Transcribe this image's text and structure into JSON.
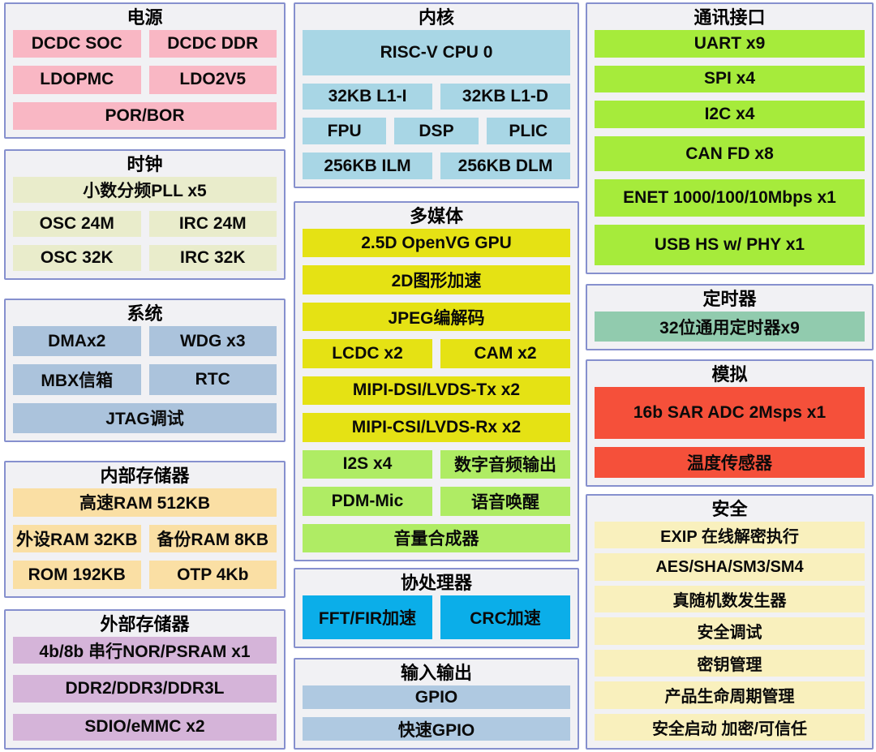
{
  "diagram": {
    "type": "soc-block-diagram",
    "colors": {
      "panel_bg": "#F1F1F4",
      "panel_border": "#8690CE",
      "power": "#F9B7C4",
      "clock": "#E9ECCB",
      "system": "#ABC3DC",
      "intmem": "#FADFA4",
      "extmem": "#D5B4D9",
      "core": "#A8D6E5",
      "multimedia_yellow": "#E5E214",
      "multimedia_green": "#AFEC64",
      "coprocessor": "#0BAEE9",
      "io": "#AFC9E1",
      "comm": "#A6EB3B",
      "timer": "#91CBAE",
      "analog": "#F5503A",
      "security": "#F9F0BD"
    }
  },
  "panels": {
    "power": {
      "title": "电源",
      "box_bg": "#F9B7C4",
      "rows": [
        {
          "cells": [
            {
              "t": "DCDC SOC",
              "n": "dcdc-soc"
            },
            {
              "t": "DCDC DDR",
              "n": "dcdc-ddr"
            }
          ]
        },
        {
          "cells": [
            {
              "t": "LDOPMC",
              "n": "ldopmc"
            },
            {
              "t": "LDO2V5",
              "n": "ldo2v5"
            }
          ]
        },
        {
          "cells": [
            {
              "t": "POR/BOR",
              "n": "por-bor"
            }
          ]
        }
      ]
    },
    "clock": {
      "title": "时钟",
      "box_bg": "#E9ECCB",
      "rows": [
        {
          "cells": [
            {
              "t": "小数分频PLL x5",
              "n": "fractional-pll-x5"
            }
          ]
        },
        {
          "cells": [
            {
              "t": "OSC 24M",
              "n": "osc-24m"
            },
            {
              "t": "IRC 24M",
              "n": "irc-24m"
            }
          ]
        },
        {
          "cells": [
            {
              "t": "OSC 32K",
              "n": "osc-32k"
            },
            {
              "t": "IRC 32K",
              "n": "irc-32k"
            }
          ]
        }
      ]
    },
    "system": {
      "title": "系统",
      "box_bg": "#ABC3DC",
      "rows": [
        {
          "cells": [
            {
              "t": "DMAx2",
              "n": "dma-x2"
            },
            {
              "t": "WDG x3",
              "n": "wdg-x3"
            }
          ]
        },
        {
          "cells": [
            {
              "t": "MBX信箱",
              "n": "mbx-mailbox"
            },
            {
              "t": "RTC",
              "n": "rtc"
            }
          ]
        },
        {
          "cells": [
            {
              "t": "JTAG调试",
              "n": "jtag-debug"
            }
          ]
        }
      ]
    },
    "intmem": {
      "title": "内部存储器",
      "box_bg": "#FADFA4",
      "rows": [
        {
          "cells": [
            {
              "t": "高速RAM 512KB",
              "n": "hs-ram-512kb"
            }
          ]
        },
        {
          "cells": [
            {
              "t": "外设RAM 32KB",
              "n": "periph-ram-32kb"
            },
            {
              "t": "备份RAM 8KB",
              "n": "backup-ram-8kb"
            }
          ]
        },
        {
          "cells": [
            {
              "t": "ROM 192KB",
              "n": "rom-192kb"
            },
            {
              "t": "OTP 4Kb",
              "n": "otp-4kb"
            }
          ]
        }
      ]
    },
    "extmem": {
      "title": "外部存储器",
      "box_bg": "#D5B4D9",
      "rows": [
        {
          "cells": [
            {
              "t": "4b/8b 串行NOR/PSRAM x1",
              "n": "serial-nor-psram-x1"
            }
          ]
        },
        {
          "cells": [
            {
              "t": "DDR2/DDR3/DDR3L",
              "n": "ddr2-ddr3-ddr3l"
            }
          ]
        },
        {
          "cells": [
            {
              "t": "SDIO/eMMC x2",
              "n": "sdio-emmc-x2"
            }
          ]
        }
      ]
    },
    "core": {
      "title": "内核",
      "box_bg": "#A8D6E5",
      "rows": [
        {
          "cells": [
            {
              "t": "RISC-V CPU 0",
              "n": "risc-v-cpu-0"
            }
          ]
        },
        {
          "cells": [
            {
              "t": "32KB L1-I",
              "n": "l1-i-32kb"
            },
            {
              "t": "32KB L1-D",
              "n": "l1-d-32kb"
            }
          ]
        },
        {
          "cells": [
            {
              "t": "FPU",
              "n": "fpu"
            },
            {
              "t": "DSP",
              "n": "dsp"
            },
            {
              "t": "PLIC",
              "n": "plic"
            }
          ]
        },
        {
          "cells": [
            {
              "t": "256KB ILM",
              "n": "ilm-256kb"
            },
            {
              "t": "256KB DLM",
              "n": "dlm-256kb"
            }
          ]
        }
      ]
    },
    "multimedia": {
      "title": "多媒体",
      "box_bg": "#E5E214",
      "rows": [
        {
          "cells": [
            {
              "t": "2.5D OpenVG GPU",
              "n": "openvg-gpu"
            }
          ]
        },
        {
          "cells": [
            {
              "t": "2D图形加速",
              "n": "graphics-2d-accel"
            }
          ]
        },
        {
          "cells": [
            {
              "t": "JPEG编解码",
              "n": "jpeg-codec"
            }
          ]
        },
        {
          "cells": [
            {
              "t": "LCDC x2",
              "n": "lcdc-x2"
            },
            {
              "t": "CAM x2",
              "n": "cam-x2"
            }
          ]
        },
        {
          "cells": [
            {
              "t": "MIPI-DSI/LVDS-Tx x2",
              "n": "mipi-dsi-lvds-tx-x2"
            }
          ]
        },
        {
          "cells": [
            {
              "t": "MIPI-CSI/LVDS-Rx x2",
              "n": "mipi-csi-lvds-rx-x2"
            }
          ]
        },
        {
          "cells": [
            {
              "t": "I2S x4",
              "n": "i2s-x4",
              "bg": "#AFEC64"
            },
            {
              "t": "数字音频输出",
              "n": "digital-audio-out",
              "bg": "#AFEC64"
            }
          ]
        },
        {
          "cells": [
            {
              "t": "PDM-Mic",
              "n": "pdm-mic",
              "bg": "#AFEC64"
            },
            {
              "t": "语音唤醒",
              "n": "voice-wakeup",
              "bg": "#AFEC64"
            }
          ]
        },
        {
          "cells": [
            {
              "t": "音量合成器",
              "n": "volume-synthesizer",
              "bg": "#AFEC64"
            }
          ]
        }
      ]
    },
    "coprocessor": {
      "title": "协处理器",
      "box_bg": "#0BAEE9",
      "rows": [
        {
          "cells": [
            {
              "t": "FFT/FIR加速",
              "n": "fft-fir-accel"
            },
            {
              "t": "CRC加速",
              "n": "crc-accel"
            }
          ]
        }
      ]
    },
    "io": {
      "title": "输入输出",
      "box_bg": "#AFC9E1",
      "rows": [
        {
          "cells": [
            {
              "t": "GPIO",
              "n": "gpio"
            }
          ]
        },
        {
          "cells": [
            {
              "t": "快速GPIO",
              "n": "fast-gpio"
            }
          ]
        }
      ]
    },
    "comm": {
      "title": "通讯接口",
      "box_bg": "#A6EB3B",
      "rows": [
        {
          "cells": [
            {
              "t": "UART x9",
              "n": "uart-x9"
            }
          ]
        },
        {
          "cells": [
            {
              "t": "SPI x4",
              "n": "spi-x4"
            }
          ]
        },
        {
          "cells": [
            {
              "t": "I2C x4",
              "n": "i2c-x4"
            }
          ]
        },
        {
          "cells": [
            {
              "t": "CAN FD x8",
              "n": "can-fd-x8"
            }
          ]
        },
        {
          "cells": [
            {
              "t": "ENET 1000/100/10Mbps x1",
              "n": "enet-x1"
            }
          ]
        },
        {
          "cells": [
            {
              "t": "USB HS w/ PHY x1",
              "n": "usb-hs-phy-x1"
            }
          ]
        }
      ]
    },
    "timer": {
      "title": "定时器",
      "box_bg": "#91CBAE",
      "rows": [
        {
          "cells": [
            {
              "t": "32位通用定时器x9",
              "n": "gp-timer-32bit-x9"
            }
          ]
        }
      ]
    },
    "analog": {
      "title": "模拟",
      "box_bg": "#F5503A",
      "rows": [
        {
          "cells": [
            {
              "t": "16b SAR ADC 2Msps x1",
              "n": "sar-adc-16b"
            }
          ]
        },
        {
          "cells": [
            {
              "t": "温度传感器",
              "n": "temp-sensor"
            }
          ]
        }
      ]
    },
    "security": {
      "title": "安全",
      "box_bg": "#F9F0BD",
      "rows": [
        {
          "cells": [
            {
              "t": "EXIP 在线解密执行",
              "n": "exip-inline-decrypt"
            }
          ]
        },
        {
          "cells": [
            {
              "t": "AES/SHA/SM3/SM4",
              "n": "aes-sha-sm3-sm4"
            }
          ]
        },
        {
          "cells": [
            {
              "t": "真随机数发生器",
              "n": "trng"
            }
          ]
        },
        {
          "cells": [
            {
              "t": "安全调试",
              "n": "secure-debug"
            }
          ]
        },
        {
          "cells": [
            {
              "t": "密钥管理",
              "n": "key-management"
            }
          ]
        },
        {
          "cells": [
            {
              "t": "产品生命周期管理",
              "n": "product-lifecycle-mgmt"
            }
          ]
        },
        {
          "cells": [
            {
              "t": "安全启动 加密/可信任",
              "n": "secure-boot"
            }
          ]
        }
      ]
    }
  }
}
